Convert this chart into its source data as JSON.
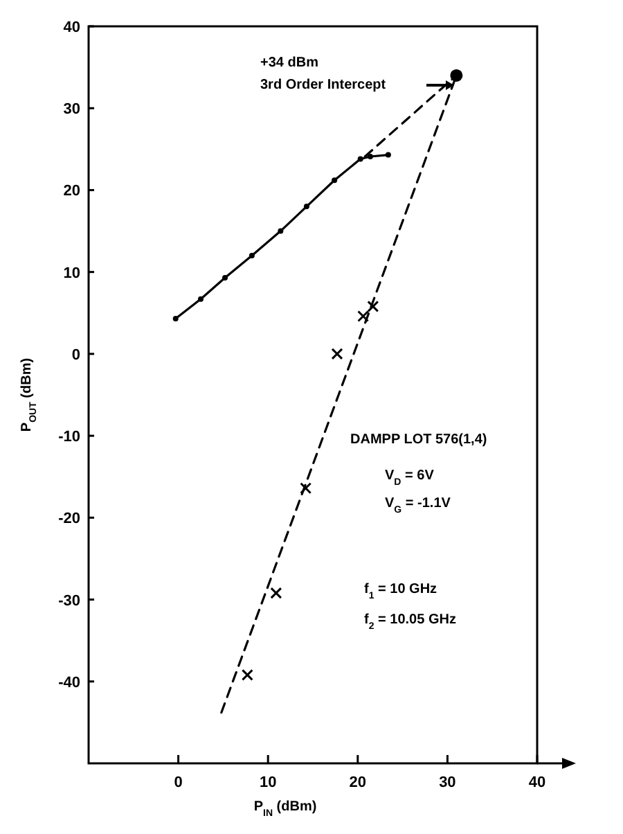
{
  "chart_data": {
    "type": "line",
    "xlabel": "P$_{IN}$ (dBm)",
    "ylabel": "P$_{OUT}$ (dBm)",
    "xlim": [
      -10,
      40
    ],
    "ylim": [
      -50,
      40
    ],
    "xticks": [
      0,
      10,
      20,
      30,
      40
    ],
    "yticks": [
      -40,
      -30,
      -20,
      -10,
      0,
      10,
      20,
      30,
      40
    ],
    "grid": false,
    "series": [
      {
        "color": "#000000",
        "marker": "circle",
        "line_style": "solid",
        "x": [
          -0.3,
          2.5,
          5.2,
          8.2,
          11.4,
          14.3,
          17.4,
          20.3,
          21.4,
          23.4
        ],
        "values": [
          4.3,
          6.7,
          9.3,
          12,
          15,
          18,
          21.2,
          23.8,
          24.1,
          24.3
        ]
      },
      {
        "type": "scatter",
        "color": "#000000",
        "marker": "cross",
        "x": [
          7.7,
          10.9,
          14.2,
          17.7,
          20.6,
          21.7
        ],
        "values": [
          -39.2,
          -29.2,
          -16.4,
          0,
          4.6,
          5.8
        ]
      },
      {
        "type": "line",
        "color": "#000000",
        "marker": "none",
        "line_style": "dashed",
        "x": [
          4.8,
          31
        ],
        "values": [
          -43.8,
          34
        ]
      },
      {
        "type": "line",
        "color": "#000000",
        "marker": "none",
        "line_style": "dashed",
        "x": [
          20.8,
          31
        ],
        "values": [
          24.1,
          34
        ]
      },
      {
        "type": "scatter",
        "color": "#000000",
        "marker": "circle",
        "x": [
          31
        ],
        "values": [
          34
        ]
      }
    ],
    "annotations": [
      "+34 dBm",
      "3rd Order Intercept",
      "DAMPP LOT 576(1,4)",
      "V$_{D}$ = 6V",
      "V$_{G}$ = -1.1V",
      "f$_{1}$ = 10 GHz",
      "f$_{2}$ = 10.05 GHz"
    ]
  }
}
